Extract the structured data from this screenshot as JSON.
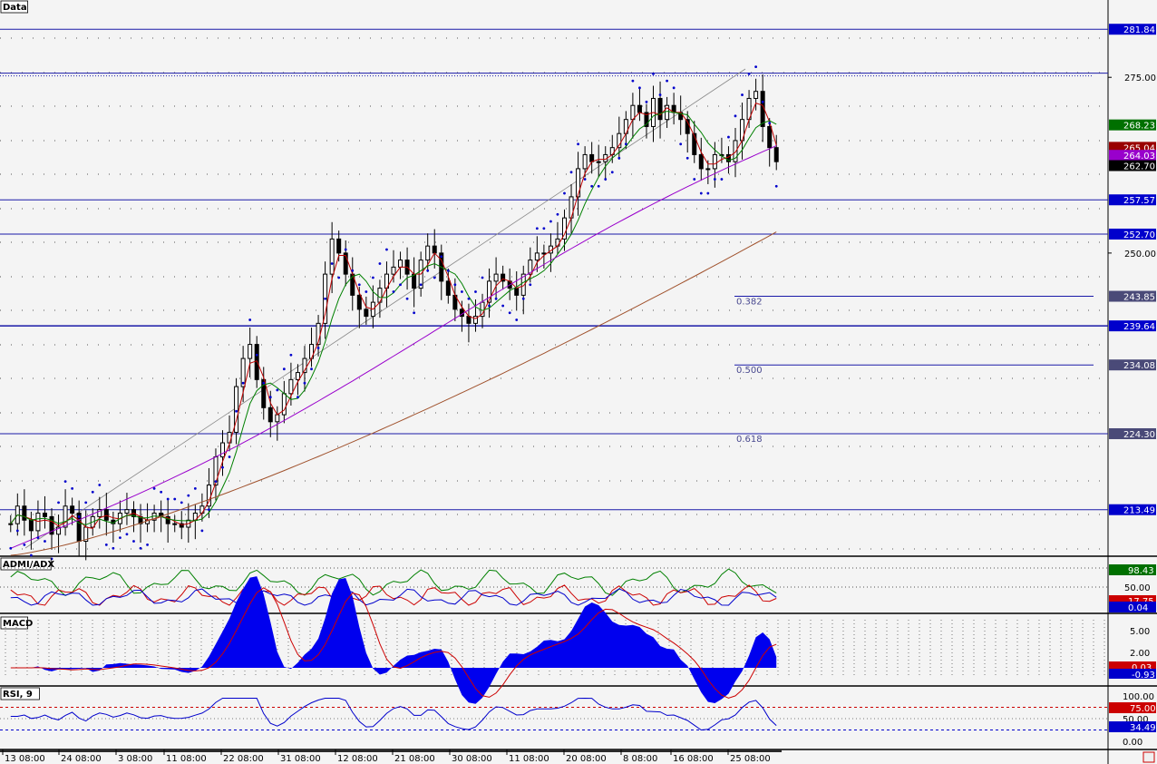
{
  "colors": {
    "background": "#f4f4f4",
    "hline": "#1a1aa8",
    "candle": "#000000",
    "ma_red": "#c00000",
    "ma_green": "#008000",
    "ma_purple": "#9900cc",
    "ma_brown": "#a0522d",
    "psar": "#0000cc",
    "macd_hist": "#0000ee",
    "macd_signal": "#cc0000"
  },
  "panels": {
    "price_title": "Data",
    "admi_title": "ADMI/ADX",
    "macd_title": "MACD",
    "rsi_title": "RSI, 9"
  },
  "price_axis": {
    "ticks": [
      "275.00",
      "250.00"
    ]
  },
  "price_tags": [
    {
      "text": "281.84",
      "bg": "#0000cc",
      "fg": "#ffffff"
    },
    {
      "text": "268.23",
      "bg": "#007000",
      "fg": "#ffffff"
    },
    {
      "text": "265.04",
      "bg": "#990000",
      "fg": "#ffffff"
    },
    {
      "text": "264.03",
      "bg": "#9900cc",
      "fg": "#ffffff"
    },
    {
      "text": "262.70",
      "bg": "#000000",
      "fg": "#ffffff"
    },
    {
      "text": "257.57",
      "bg": "#0000cc",
      "fg": "#ffffff"
    },
    {
      "text": "252.70",
      "bg": "#0000cc",
      "fg": "#ffffff"
    },
    {
      "text": "243.85",
      "bg": "#4a4a78",
      "fg": "#ffffff"
    },
    {
      "text": "239.64",
      "bg": "#0000cc",
      "fg": "#ffffff"
    },
    {
      "text": "234.08",
      "bg": "#4a4a78",
      "fg": "#ffffff"
    },
    {
      "text": "224.30",
      "bg": "#4a4a78",
      "fg": "#ffffff"
    },
    {
      "text": "213.49",
      "bg": "#0000cc",
      "fg": "#ffffff"
    }
  ],
  "fib_labels": [
    "0.382",
    "0.500",
    "0.618"
  ],
  "admi_axis": {
    "ticks": [
      "50.00"
    ],
    "tags": [
      {
        "text": "98.43",
        "bg": "#007000",
        "fg": "#ffffff"
      },
      {
        "text": "17.75",
        "bg": "#cc0000",
        "fg": "#ffffff"
      },
      {
        "text": "0.04",
        "bg": "#0000cc",
        "fg": "#ffffff"
      }
    ]
  },
  "macd_axis": {
    "ticks": [
      "5.00",
      "2.00"
    ],
    "tags": [
      {
        "text": "0.03",
        "bg": "#cc0000",
        "fg": "#ffffff"
      },
      {
        "text": "-0.93",
        "bg": "#0000cc",
        "fg": "#ffffff"
      }
    ]
  },
  "rsi_axis": {
    "ticks": [
      "100.00",
      "50.00",
      "0.00"
    ],
    "tags": [
      {
        "text": "75.00",
        "bg": "#cc0000",
        "fg": "#ffffff"
      },
      {
        "text": "34.49",
        "bg": "#0000cc",
        "fg": "#ffffff"
      }
    ]
  },
  "time_axis": [
    "13 08:00",
    "24 08:00",
    "3 08:00",
    "11 08:00",
    "22 08:00",
    "31 08:00",
    "12 08:00",
    "21 08:00",
    "30 08:00",
    "11 08:00",
    "20 08:00",
    "8 08:00",
    "16 08:00",
    "25 08:00"
  ],
  "chart_data": {
    "type": "candlestick",
    "ylim": [
      207,
      286
    ],
    "horizontal_levels": [
      281.84,
      275.6,
      257.57,
      252.7,
      239.64,
      224.3,
      213.49
    ],
    "fib_levels": [
      {
        "label": "0.382",
        "value": 243.85
      },
      {
        "label": "0.500",
        "value": 234.08
      },
      {
        "label": "0.618",
        "value": 224.3
      }
    ],
    "close_series_estimate": [
      211.5,
      214,
      212,
      210.5,
      213,
      212.5,
      210,
      211,
      214,
      213,
      209,
      211,
      212.5,
      213.5,
      212,
      211.5,
      213,
      213.5,
      212.5,
      211.5,
      212,
      213,
      212.5,
      211.5,
      211.5,
      211,
      212,
      213,
      214,
      217,
      221,
      223,
      224.5,
      231,
      235,
      237,
      232,
      228,
      226,
      227,
      230,
      232,
      233,
      235,
      237,
      240,
      247,
      252,
      250,
      247,
      244,
      242,
      241,
      243,
      245,
      247,
      248,
      249,
      247,
      245,
      249,
      251,
      250,
      246,
      244,
      242,
      241,
      240,
      241,
      243,
      246,
      247,
      246,
      245,
      244,
      247,
      249,
      250,
      250,
      251,
      252,
      255,
      258,
      262,
      264,
      263,
      263,
      264,
      265,
      267,
      269,
      271,
      270,
      268,
      272,
      269,
      271,
      270,
      269,
      267,
      264,
      262,
      262,
      264,
      264,
      263,
      266,
      269,
      272,
      273,
      268,
      265,
      263
    ],
    "rsi_level_lines": [
      75,
      25
    ]
  }
}
